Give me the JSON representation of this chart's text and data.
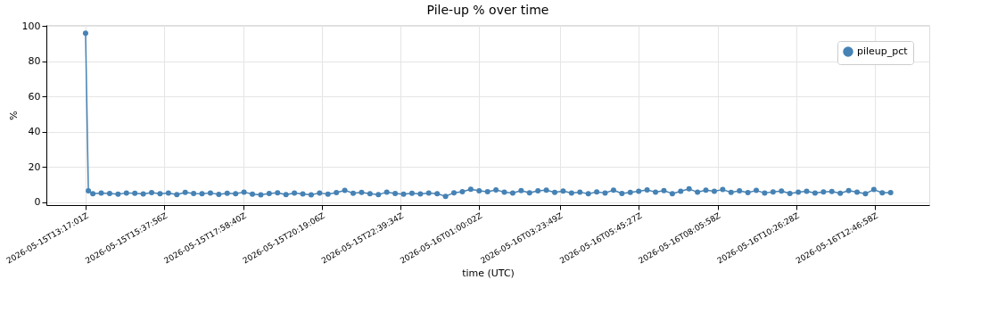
{
  "chart_data": {
    "type": "line",
    "title": "Pile-up % over time",
    "xlabel": "time (UTC)",
    "ylabel": "%",
    "x": [
      "2026-05-15T13:17:01",
      "2026-05-15T13:22",
      "2026-05-15T13:30",
      "2026-05-15T13:45",
      "2026-05-15T14:00",
      "2026-05-15T14:15",
      "2026-05-15T14:30",
      "2026-05-15T14:45",
      "2026-05-15T15:00",
      "2026-05-15T15:15",
      "2026-05-15T15:30",
      "2026-05-15T15:45",
      "2026-05-15T16:00",
      "2026-05-15T16:15",
      "2026-05-15T16:30",
      "2026-05-15T16:45",
      "2026-05-15T17:00",
      "2026-05-15T17:15",
      "2026-05-15T17:30",
      "2026-05-15T17:45",
      "2026-05-15T18:00",
      "2026-05-15T18:15",
      "2026-05-15T18:30",
      "2026-05-15T18:45",
      "2026-05-15T19:00",
      "2026-05-15T19:15",
      "2026-05-15T19:30",
      "2026-05-15T19:45",
      "2026-05-15T20:00",
      "2026-05-15T20:15",
      "2026-05-15T20:30",
      "2026-05-15T20:45",
      "2026-05-15T21:00",
      "2026-05-15T21:15",
      "2026-05-15T21:30",
      "2026-05-15T21:45",
      "2026-05-15T22:00",
      "2026-05-15T22:15",
      "2026-05-15T22:30",
      "2026-05-15T22:45",
      "2026-05-15T23:00",
      "2026-05-15T23:15",
      "2026-05-15T23:30",
      "2026-05-15T23:45",
      "2026-05-16T00:00",
      "2026-05-16T00:15",
      "2026-05-16T00:30",
      "2026-05-16T00:45",
      "2026-05-16T01:00",
      "2026-05-16T01:15",
      "2026-05-16T01:30",
      "2026-05-16T01:45",
      "2026-05-16T02:00",
      "2026-05-16T02:15",
      "2026-05-16T02:30",
      "2026-05-16T02:45",
      "2026-05-16T03:00",
      "2026-05-16T03:15",
      "2026-05-16T03:30",
      "2026-05-16T03:45",
      "2026-05-16T04:00",
      "2026-05-16T04:15",
      "2026-05-16T04:30",
      "2026-05-16T04:45",
      "2026-05-16T05:00",
      "2026-05-16T05:15",
      "2026-05-16T05:30",
      "2026-05-16T05:45",
      "2026-05-16T06:00",
      "2026-05-16T06:15",
      "2026-05-16T06:30",
      "2026-05-16T06:45",
      "2026-05-16T07:00",
      "2026-05-16T07:15",
      "2026-05-16T07:30",
      "2026-05-16T07:45",
      "2026-05-16T08:00",
      "2026-05-16T08:15",
      "2026-05-16T08:30",
      "2026-05-16T08:45",
      "2026-05-16T09:00",
      "2026-05-16T09:15",
      "2026-05-16T09:30",
      "2026-05-16T09:45",
      "2026-05-16T10:00",
      "2026-05-16T10:15",
      "2026-05-16T10:30",
      "2026-05-16T10:45",
      "2026-05-16T11:00",
      "2026-05-16T11:15",
      "2026-05-16T11:30",
      "2026-05-16T11:45",
      "2026-05-16T12:00",
      "2026-05-16T12:15",
      "2026-05-16T12:30",
      "2026-05-16T12:45",
      "2026-05-16T13:00",
      "2026-05-16T13:15"
    ],
    "series": [
      {
        "name": "pileup_pct",
        "color": "#4682b4",
        "values": [
          96,
          6.5,
          4.8,
          5.2,
          5.0,
          4.6,
          5.3,
          5.1,
          4.7,
          5.5,
          4.9,
          5.2,
          4.4,
          5.6,
          5.0,
          4.8,
          5.3,
          4.5,
          5.1,
          4.9,
          5.8,
          4.6,
          4.2,
          5.0,
          5.4,
          4.3,
          5.2,
          4.7,
          4.2,
          5.3,
          4.6,
          5.5,
          6.8,
          5.1,
          5.6,
          4.9,
          4.3,
          5.8,
          5.0,
          4.6,
          5.1,
          4.7,
          5.2,
          4.9,
          3.4,
          5.4,
          6.0,
          7.4,
          6.5,
          6.0,
          7.0,
          5.8,
          5.2,
          6.6,
          5.4,
          6.5,
          6.9,
          5.6,
          6.4,
          5.2,
          5.8,
          4.8,
          5.9,
          5.3,
          6.9,
          5.0,
          5.6,
          6.3,
          7.0,
          5.8,
          6.6,
          4.9,
          6.2,
          7.6,
          5.7,
          6.9,
          6.3,
          7.2,
          5.6,
          6.5,
          5.5,
          6.7,
          5.3,
          5.9,
          6.4,
          5.0,
          5.8,
          6.3,
          5.2,
          5.9,
          6.1,
          5.1,
          6.6,
          5.8,
          4.9,
          7.2,
          5.4,
          5.5
        ]
      }
    ],
    "xlim": [
      "2026-05-15T12:07:00",
      "2026-05-16T14:24:00"
    ],
    "xticks": [
      {
        "value": "2026-05-15T13:17:01",
        "label": "2026-05-15T13:17:01Z"
      },
      {
        "value": "2026-05-15T15:37:56",
        "label": "2026-05-15T15:37:56Z"
      },
      {
        "value": "2026-05-15T17:58:40",
        "label": "2026-05-15T17:58:40Z"
      },
      {
        "value": "2026-05-15T20:19:06",
        "label": "2026-05-15T20:19:06Z"
      },
      {
        "value": "2026-05-15T22:39:34",
        "label": "2026-05-15T22:39:34Z"
      },
      {
        "value": "2026-05-16T01:00:02",
        "label": "2026-05-16T01:00:02Z"
      },
      {
        "value": "2026-05-16T03:23:49",
        "label": "2026-05-16T03:23:49Z"
      },
      {
        "value": "2026-05-16T05:45:27",
        "label": "2026-05-16T05:45:27Z"
      },
      {
        "value": "2026-05-16T08:05:58",
        "label": "2026-05-16T08:05:58Z"
      },
      {
        "value": "2026-05-16T10:26:28",
        "label": "2026-05-16T10:26:28Z"
      },
      {
        "value": "2026-05-16T12:46:58",
        "label": "2026-05-16T12:46:58Z"
      }
    ],
    "ylim": [
      -1.6,
      100.7
    ],
    "yticks": [
      0,
      20,
      40,
      60,
      80,
      100
    ],
    "grid": true,
    "legend": "top right",
    "marker": "circle",
    "line_style": "solid"
  }
}
